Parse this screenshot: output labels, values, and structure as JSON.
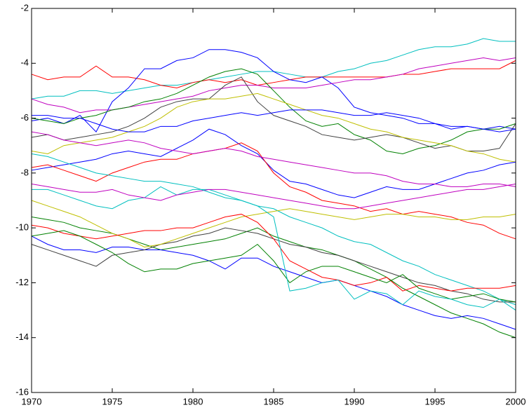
{
  "chart_data": {
    "type": "line",
    "x": [
      1970,
      1971,
      1972,
      1973,
      1974,
      1975,
      1976,
      1977,
      1978,
      1979,
      1980,
      1981,
      1982,
      1983,
      1984,
      1985,
      1986,
      1987,
      1988,
      1989,
      1990,
      1991,
      1992,
      1993,
      1994,
      1995,
      1996,
      1997,
      1998,
      1999,
      2000
    ],
    "xlim": [
      1970,
      2000
    ],
    "xticks": [
      1970,
      1975,
      1980,
      1985,
      1990,
      1995,
      2000
    ],
    "ylim": [
      -16,
      -2
    ],
    "yticks": [
      -16,
      -14,
      -12,
      -10,
      -8,
      -6,
      -4,
      -2
    ],
    "series": [
      {
        "color": "#00bfbf",
        "values": [
          -5.3,
          -5.2,
          -5.2,
          -5.0,
          -5.0,
          -5.1,
          -5.0,
          -4.9,
          -4.8,
          -4.8,
          -4.7,
          -4.6,
          -4.5,
          -4.4,
          -4.3,
          -4.3,
          -4.4,
          -4.5,
          -4.5,
          -4.3,
          -4.2,
          -4.0,
          -3.9,
          -3.7,
          -3.5,
          -3.4,
          -3.4,
          -3.3,
          -3.1,
          -3.2,
          -3.2
        ]
      },
      {
        "color": "#ff0000",
        "values": [
          -4.4,
          -4.6,
          -4.5,
          -4.5,
          -4.1,
          -4.5,
          -4.5,
          -4.6,
          -4.8,
          -4.9,
          -4.7,
          -4.6,
          -4.7,
          -4.6,
          -4.8,
          -4.7,
          -4.6,
          -4.5,
          -4.5,
          -4.5,
          -4.5,
          -4.5,
          -4.5,
          -4.4,
          -4.4,
          -4.3,
          -4.2,
          -4.2,
          -4.2,
          -4.2,
          -3.9
        ]
      },
      {
        "color": "#0000ff",
        "values": [
          -6.1,
          -6.0,
          -6.2,
          -5.9,
          -6.5,
          -5.4,
          -4.9,
          -4.2,
          -4.2,
          -3.9,
          -3.8,
          -3.5,
          -3.5,
          -3.6,
          -3.8,
          -4.3,
          -4.6,
          -4.7,
          -4.5,
          -4.9,
          -5.6,
          -5.8,
          -5.9,
          -6.0,
          -6.2,
          -6.2,
          -6.4,
          -6.3,
          -6.4,
          -6.3,
          -6.4
        ]
      },
      {
        "color": "#bf00bf",
        "values": [
          -5.3,
          -5.5,
          -5.6,
          -5.8,
          -5.7,
          -5.7,
          -5.6,
          -5.5,
          -5.4,
          -5.3,
          -5.2,
          -5.0,
          -4.9,
          -4.8,
          -4.8,
          -4.9,
          -4.9,
          -4.9,
          -4.8,
          -4.7,
          -4.6,
          -4.6,
          -4.5,
          -4.4,
          -4.2,
          -4.1,
          -4.0,
          -3.9,
          -3.8,
          -3.9,
          -3.8
        ]
      },
      {
        "color": "#008000",
        "values": [
          -6.0,
          -6.1,
          -6.2,
          -6.0,
          -5.9,
          -5.7,
          -5.6,
          -5.4,
          -5.3,
          -5.1,
          -4.8,
          -4.5,
          -4.3,
          -4.2,
          -4.4,
          -5.0,
          -5.6,
          -6.1,
          -6.3,
          -6.2,
          -6.6,
          -6.8,
          -7.2,
          -7.3,
          -7.1,
          -7.0,
          -6.8,
          -6.5,
          -6.4,
          -6.4,
          -6.2
        ]
      },
      {
        "color": "#404040",
        "values": [
          -6.7,
          -6.6,
          -6.8,
          -6.7,
          -6.6,
          -6.5,
          -6.3,
          -6.0,
          -5.6,
          -5.4,
          -5.3,
          -5.3,
          -4.8,
          -4.5,
          -5.4,
          -5.9,
          -6.1,
          -6.3,
          -6.6,
          -6.7,
          -6.8,
          -6.7,
          -6.6,
          -6.7,
          -6.9,
          -7.1,
          -7.0,
          -7.2,
          -7.2,
          -7.1,
          -6.2
        ]
      },
      {
        "color": "#bfbf00",
        "values": [
          -7.2,
          -7.3,
          -7.0,
          -6.9,
          -6.8,
          -6.7,
          -6.5,
          -6.3,
          -6.0,
          -5.6,
          -5.4,
          -5.3,
          -5.3,
          -5.2,
          -5.1,
          -5.3,
          -5.5,
          -5.7,
          -5.9,
          -6.0,
          -6.2,
          -6.4,
          -6.5,
          -6.7,
          -6.8,
          -6.9,
          -7.0,
          -7.2,
          -7.3,
          -7.5,
          -7.6
        ]
      },
      {
        "color": "#0000ff",
        "values": [
          -7.9,
          -7.8,
          -7.7,
          -7.6,
          -7.5,
          -7.3,
          -7.2,
          -7.3,
          -7.4,
          -7.1,
          -6.8,
          -6.4,
          -6.6,
          -7.0,
          -7.3,
          -7.9,
          -8.3,
          -8.4,
          -8.6,
          -8.8,
          -8.9,
          -8.7,
          -8.5,
          -8.6,
          -8.6,
          -8.4,
          -8.2,
          -8.0,
          -7.9,
          -7.7,
          -7.6
        ]
      },
      {
        "color": "#ff0000",
        "values": [
          -7.8,
          -7.7,
          -7.9,
          -8.1,
          -8.3,
          -8.0,
          -7.8,
          -7.6,
          -7.5,
          -7.5,
          -7.3,
          -7.2,
          -7.1,
          -6.9,
          -7.2,
          -8.0,
          -8.5,
          -8.7,
          -9.0,
          -9.1,
          -9.2,
          -9.4,
          -9.3,
          -9.5,
          -9.4,
          -9.5,
          -9.6,
          -9.8,
          -9.9,
          -10.2,
          -10.4
        ]
      },
      {
        "color": "#00bfbf",
        "values": [
          -8.6,
          -8.6,
          -8.8,
          -9.0,
          -9.2,
          -9.3,
          -9.0,
          -8.9,
          -8.5,
          -8.8,
          -8.6,
          -8.6,
          -8.8,
          -9.0,
          -9.2,
          -9.3,
          -9.6,
          -9.8,
          -10.0,
          -10.3,
          -10.5,
          -10.6,
          -10.9,
          -11.2,
          -11.4,
          -11.7,
          -11.9,
          -12.1,
          -12.3,
          -12.6,
          -12.8
        ]
      },
      {
        "color": "#008000",
        "values": [
          -9.6,
          -9.7,
          -9.8,
          -10.0,
          -10.1,
          -10.2,
          -10.4,
          -10.6,
          -10.8,
          -10.7,
          -10.6,
          -10.5,
          -10.4,
          -10.2,
          -10.0,
          -10.3,
          -10.5,
          -10.7,
          -10.8,
          -11.0,
          -11.2,
          -11.5,
          -11.8,
          -12.2,
          -12.5,
          -12.8,
          -13.1,
          -13.3,
          -13.5,
          -13.8,
          -14.0
        ]
      },
      {
        "color": "#0000ff",
        "values": [
          -10.3,
          -10.6,
          -10.8,
          -10.8,
          -10.9,
          -10.7,
          -10.7,
          -10.8,
          -10.8,
          -10.9,
          -11.0,
          -11.2,
          -11.5,
          -11.1,
          -11.1,
          -11.4,
          -11.6,
          -11.8,
          -12.0,
          -11.9,
          -12.1,
          -12.3,
          -12.5,
          -12.8,
          -13.0,
          -13.2,
          -13.3,
          -13.2,
          -13.3,
          -13.5,
          -13.7
        ]
      },
      {
        "color": "#404040",
        "values": [
          -10.6,
          -10.8,
          -11.0,
          -11.2,
          -11.4,
          -11.0,
          -10.9,
          -10.8,
          -10.6,
          -10.5,
          -10.3,
          -10.2,
          -10.0,
          -10.1,
          -10.2,
          -10.4,
          -10.6,
          -10.7,
          -10.9,
          -11.0,
          -11.2,
          -11.4,
          -11.6,
          -11.8,
          -12.0,
          -12.1,
          -12.3,
          -12.4,
          -12.6,
          -12.7,
          -12.7
        ]
      },
      {
        "color": "#bf00bf",
        "values": [
          -8.4,
          -8.5,
          -8.6,
          -8.7,
          -8.7,
          -8.6,
          -8.8,
          -8.9,
          -9.0,
          -8.8,
          -8.7,
          -8.6,
          -8.6,
          -8.7,
          -8.8,
          -8.9,
          -9.0,
          -9.1,
          -9.2,
          -9.3,
          -9.3,
          -9.2,
          -9.1,
          -9.0,
          -8.9,
          -8.8,
          -8.7,
          -8.6,
          -8.6,
          -8.5,
          -8.4
        ]
      },
      {
        "color": "#bfbf00",
        "values": [
          -9.0,
          -9.2,
          -9.4,
          -9.6,
          -9.9,
          -10.2,
          -10.4,
          -10.7,
          -10.6,
          -10.4,
          -10.2,
          -10.0,
          -9.8,
          -9.6,
          -9.5,
          -9.4,
          -9.3,
          -9.4,
          -9.5,
          -9.6,
          -9.7,
          -9.6,
          -9.5,
          -9.5,
          -9.6,
          -9.6,
          -9.7,
          -9.7,
          -9.6,
          -9.6,
          -9.5
        ]
      },
      {
        "color": "#ff0000",
        "values": [
          -9.9,
          -10.0,
          -10.2,
          -10.3,
          -10.4,
          -10.3,
          -10.2,
          -10.1,
          -10.1,
          -10.0,
          -10.0,
          -9.8,
          -9.6,
          -9.5,
          -9.8,
          -10.4,
          -11.2,
          -11.5,
          -11.8,
          -11.9,
          -12.1,
          -12.0,
          -11.8,
          -12.3,
          -12.1,
          -12.2,
          -12.3,
          -12.2,
          -12.2,
          -12.2,
          -12.1
        ]
      },
      {
        "color": "#008000",
        "values": [
          -10.3,
          -10.2,
          -10.1,
          -10.3,
          -10.6,
          -10.9,
          -11.3,
          -11.6,
          -11.5,
          -11.5,
          -11.3,
          -11.2,
          -11.1,
          -11.0,
          -10.6,
          -11.2,
          -12.0,
          -11.6,
          -11.4,
          -11.4,
          -11.6,
          -11.8,
          -12.0,
          -11.7,
          -12.2,
          -12.4,
          -12.6,
          -12.5,
          -12.4,
          -12.6,
          -12.7
        ]
      },
      {
        "color": "#00bfbf",
        "values": [
          -7.3,
          -7.4,
          -7.6,
          -7.8,
          -8.0,
          -8.1,
          -8.2,
          -8.3,
          -8.3,
          -8.4,
          -8.5,
          -8.7,
          -8.9,
          -9.0,
          -9.2,
          -9.6,
          -12.3,
          -12.2,
          -12.0,
          -11.9,
          -12.6,
          -12.3,
          -12.4,
          -12.8,
          -12.3,
          -12.5,
          -12.6,
          -12.8,
          -12.9,
          -12.6,
          -13.0
        ]
      },
      {
        "color": "#0000ff",
        "values": [
          -5.9,
          -5.9,
          -6.0,
          -6.0,
          -6.2,
          -6.4,
          -6.5,
          -6.5,
          -6.3,
          -6.3,
          -6.1,
          -6.0,
          -5.9,
          -5.8,
          -5.9,
          -5.8,
          -5.7,
          -5.7,
          -5.7,
          -5.8,
          -5.9,
          -5.9,
          -5.8,
          -5.9,
          -6.0,
          -6.2,
          -6.3,
          -6.3,
          -6.4,
          -6.5,
          -6.4
        ]
      },
      {
        "color": "#bf00bf",
        "values": [
          -6.5,
          -6.6,
          -6.8,
          -6.9,
          -7.0,
          -6.9,
          -6.8,
          -6.9,
          -7.1,
          -7.2,
          -7.3,
          -7.2,
          -7.1,
          -7.2,
          -7.4,
          -7.5,
          -7.6,
          -7.7,
          -7.8,
          -7.9,
          -8.0,
          -8.0,
          -8.1,
          -8.3,
          -8.4,
          -8.4,
          -8.5,
          -8.5,
          -8.4,
          -8.4,
          -8.5
        ]
      }
    ]
  }
}
